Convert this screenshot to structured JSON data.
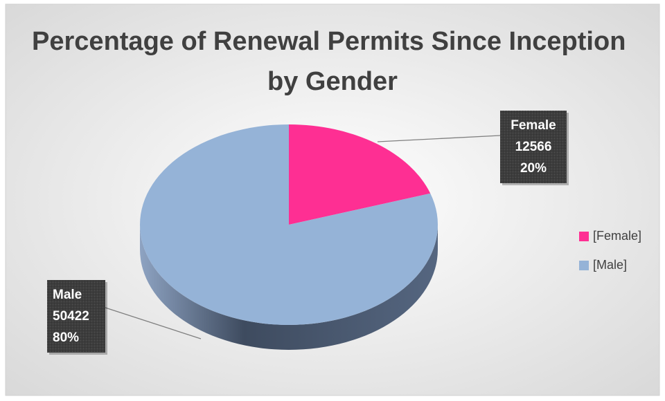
{
  "chart_data": {
    "type": "pie",
    "title": "Percentage of Renewal Permits Since Inception by Gender",
    "categories": [
      "Female",
      "Male"
    ],
    "values": [
      12566,
      50422
    ],
    "percentages": [
      20,
      80
    ],
    "percentage_labels": [
      "20%",
      "80%"
    ],
    "legend_labels": [
      "[Female]",
      "[Male]"
    ],
    "colors": [
      "#fe2f93",
      "#95b3d7"
    ],
    "legend": "right"
  }
}
